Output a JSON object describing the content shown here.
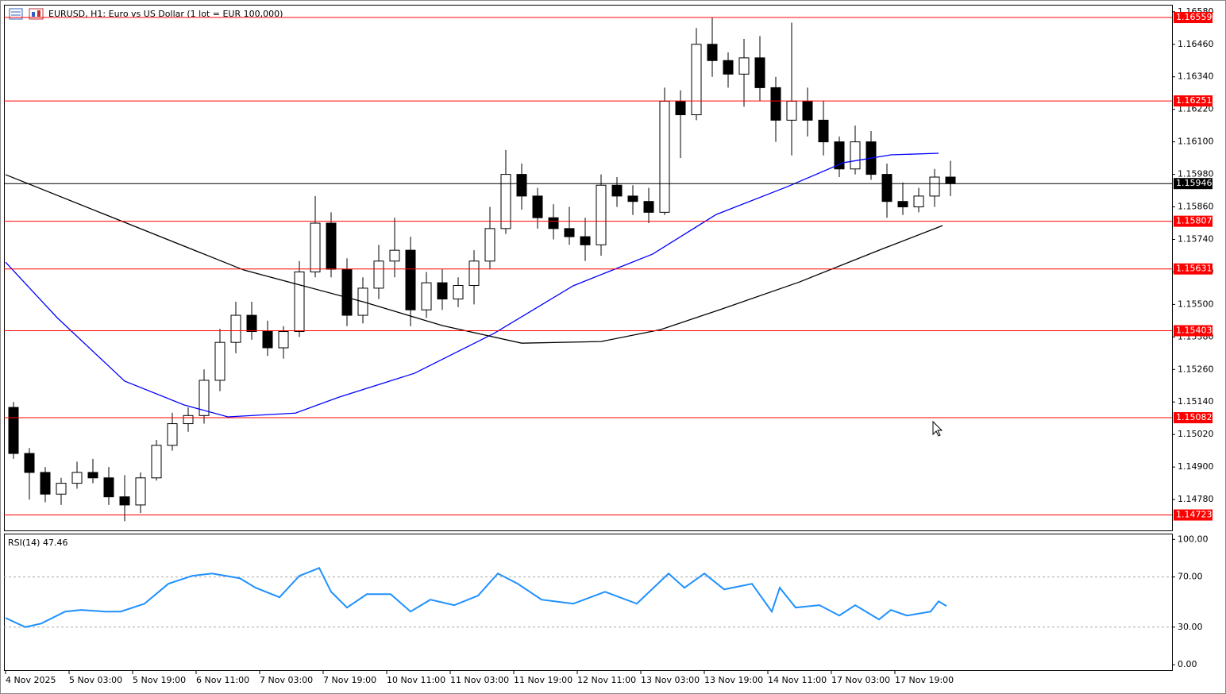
{
  "chart_data": [
    {
      "type": "candlestick",
      "title": "EURUSD, H1:  Euro vs US Dollar (1 lot = EUR 100,000)",
      "x": [
        2,
        6,
        10,
        14,
        18,
        22,
        26,
        30,
        34,
        38,
        42,
        46,
        50,
        54,
        58,
        62,
        66,
        70,
        74,
        78,
        82,
        86,
        90,
        94,
        98,
        102,
        106,
        110,
        114,
        118,
        122,
        126,
        130,
        134,
        138,
        142,
        146,
        150,
        154,
        158,
        162,
        166,
        170,
        174,
        178,
        182,
        186,
        190,
        194,
        198,
        202,
        206,
        210,
        214,
        218,
        222,
        226,
        230,
        234,
        238
      ],
      "open": [
        1.1512,
        1.1495,
        1.1488,
        1.148,
        1.1484,
        1.1488,
        1.1486,
        1.1479,
        1.1476,
        1.1486,
        1.1498,
        1.1506,
        1.1509,
        1.1522,
        1.1536,
        1.1546,
        1.154,
        1.1534,
        1.154,
        1.1562,
        1.158,
        1.1563,
        1.1546,
        1.1556,
        1.1566,
        1.157,
        1.1548,
        1.1558,
        1.1552,
        1.1557,
        1.1566,
        1.1578,
        1.1598,
        1.159,
        1.1582,
        1.1578,
        1.1575,
        1.1572,
        1.1594,
        1.159,
        1.1588,
        1.1584,
        1.1625,
        1.162,
        1.1646,
        1.164,
        1.1635,
        1.1641,
        1.163,
        1.1618,
        1.1625,
        1.1618,
        1.161,
        1.16,
        1.161,
        1.1598,
        1.1588,
        1.1586,
        1.159,
        1.1597
      ],
      "high": [
        1.1514,
        1.1497,
        1.149,
        1.1486,
        1.1492,
        1.1493,
        1.149,
        1.1487,
        1.1488,
        1.15,
        1.151,
        1.1512,
        1.1526,
        1.1541,
        1.1551,
        1.1551,
        1.1544,
        1.1542,
        1.1566,
        1.159,
        1.1584,
        1.1567,
        1.156,
        1.1572,
        1.1582,
        1.1575,
        1.1562,
        1.1563,
        1.156,
        1.157,
        1.1586,
        1.1607,
        1.1602,
        1.1593,
        1.1587,
        1.1586,
        1.1582,
        1.1598,
        1.1597,
        1.1594,
        1.1593,
        1.163,
        1.1629,
        1.1652,
        1.1656,
        1.1643,
        1.1648,
        1.1649,
        1.1634,
        1.1654,
        1.163,
        1.1625,
        1.1612,
        1.1616,
        1.1614,
        1.1602,
        1.1595,
        1.1593,
        1.16,
        1.1603
      ],
      "low": [
        1.1493,
        1.1478,
        1.1477,
        1.1476,
        1.1482,
        1.1484,
        1.1476,
        1.147,
        1.1473,
        1.1485,
        1.1496,
        1.1503,
        1.1506,
        1.1518,
        1.1532,
        1.1537,
        1.1531,
        1.153,
        1.1538,
        1.156,
        1.156,
        1.1542,
        1.1543,
        1.1552,
        1.156,
        1.1542,
        1.1545,
        1.1548,
        1.1549,
        1.155,
        1.1563,
        1.1576,
        1.1585,
        1.1578,
        1.1574,
        1.1572,
        1.1566,
        1.1568,
        1.1586,
        1.1583,
        1.158,
        1.1583,
        1.1604,
        1.1618,
        1.1634,
        1.163,
        1.1623,
        1.1625,
        1.161,
        1.1605,
        1.1612,
        1.1605,
        1.1597,
        1.1598,
        1.1596,
        1.1582,
        1.1583,
        1.1584,
        1.1586,
        1.159
      ],
      "close": [
        1.1495,
        1.1488,
        1.148,
        1.1484,
        1.1488,
        1.1486,
        1.1479,
        1.1476,
        1.1486,
        1.1498,
        1.1506,
        1.1509,
        1.1522,
        1.1536,
        1.1546,
        1.154,
        1.1534,
        1.154,
        1.1562,
        1.158,
        1.1563,
        1.1546,
        1.1556,
        1.1566,
        1.157,
        1.1548,
        1.1558,
        1.1552,
        1.1557,
        1.1566,
        1.1578,
        1.1598,
        1.159,
        1.1582,
        1.1578,
        1.1575,
        1.1572,
        1.1594,
        1.159,
        1.1588,
        1.1584,
        1.1625,
        1.162,
        1.1646,
        1.164,
        1.1635,
        1.1641,
        1.163,
        1.1618,
        1.1625,
        1.1618,
        1.161,
        1.16,
        1.161,
        1.1598,
        1.1588,
        1.1586,
        1.159,
        1.1597,
        1.15946
      ],
      "lines": [
        {
          "color": "#0000ff",
          "x": [
            0,
            13,
            30,
            45,
            56,
            73,
            84,
            103,
            123,
            143,
            163,
            179,
            197,
            211,
            223,
            235
          ],
          "values": [
            1.15656,
            1.15451,
            1.15217,
            1.15129,
            1.15085,
            1.15099,
            1.15158,
            1.15246,
            1.15393,
            1.15569,
            1.15686,
            1.15832,
            1.15935,
            1.16023,
            1.16052,
            1.16058
          ]
        },
        {
          "color": "#000000",
          "x": [
            0,
            30,
            60,
            90,
            110,
            130,
            150,
            165,
            180,
            200,
            220,
            236
          ],
          "values": [
            1.15979,
            1.15803,
            1.15627,
            1.1551,
            1.15422,
            1.15357,
            1.15363,
            1.15407,
            1.15481,
            1.15583,
            1.157,
            1.15791
          ]
        }
      ],
      "levels": [
        1.16559,
        1.16251,
        1.15807,
        1.15631,
        1.15403,
        1.15082,
        1.14723
      ],
      "level_color": "#ff0000",
      "current_price": 1.15946,
      "xlim": [
        -0.4,
        293.8
      ],
      "ylim": [
        1.14666,
        1.16603
      ],
      "yticks": [
        {
          "value": 1.1658,
          "label": "1.16580"
        },
        {
          "value": 1.1646,
          "label": "1.16460"
        },
        {
          "value": 1.1634,
          "label": "1.16340"
        },
        {
          "value": 1.1622,
          "label": "1.16220"
        },
        {
          "value": 1.161,
          "label": "1.16100"
        },
        {
          "value": 1.1598,
          "label": "1.15980"
        },
        {
          "value": 1.1586,
          "label": "1.15860"
        },
        {
          "value": 1.1574,
          "label": "1.15740"
        },
        {
          "value": 1.1562,
          "label": "1.15620"
        },
        {
          "value": 1.155,
          "label": "1.15500"
        },
        {
          "value": 1.1538,
          "label": "1.15380"
        },
        {
          "value": 1.1526,
          "label": "1.15260"
        },
        {
          "value": 1.1514,
          "label": "1.15140"
        },
        {
          "value": 1.1502,
          "label": "1.15020"
        },
        {
          "value": 1.149,
          "label": "1.14900"
        },
        {
          "value": 1.1478,
          "label": "1.14780"
        }
      ]
    },
    {
      "type": "line",
      "title": "RSI(14) 47.46",
      "color": "#1e90ff",
      "x": [
        0,
        5,
        9,
        15,
        19,
        25,
        29,
        35,
        41,
        47,
        52,
        59,
        63,
        69,
        74,
        79,
        82,
        86,
        91,
        97,
        102,
        107,
        113,
        119,
        124,
        129,
        135,
        143,
        151,
        159,
        167,
        171,
        176,
        181,
        188,
        193,
        195,
        199,
        205,
        210,
        214,
        220,
        223,
        227,
        233,
        235,
        237
      ],
      "values": [
        37.3,
        30,
        32.9,
        42.4,
        43.7,
        42.4,
        42.4,
        48.7,
        64.6,
        70.9,
        72.8,
        69,
        61.4,
        53.8,
        70.9,
        77.2,
        58.2,
        45.6,
        56.3,
        56.3,
        42.4,
        51.9,
        47.5,
        55.1,
        72.8,
        64.6,
        51.9,
        48.7,
        58.2,
        48.7,
        72.8,
        61.4,
        72.8,
        60.1,
        64.6,
        42.4,
        61.4,
        45.6,
        47.5,
        39.2,
        47.5,
        36.1,
        43.7,
        39.2,
        42.4,
        50.6,
        46.8
      ],
      "levels": [
        70,
        30
      ],
      "xlim": [
        -0.4,
        293.8
      ],
      "ylim": [
        -5,
        104
      ],
      "yticks": [
        {
          "value": 100,
          "label": "100.00"
        },
        {
          "value": 70,
          "label": "70.00"
        },
        {
          "value": 30,
          "label": "30.00"
        },
        {
          "value": 0,
          "label": "0.00"
        }
      ],
      "xticks": [
        {
          "value": 0,
          "label": "4 Nov 2025"
        },
        {
          "value": 16,
          "label": "5 Nov 03:00"
        },
        {
          "value": 32,
          "label": "5 Nov 19:00"
        },
        {
          "value": 48,
          "label": "6 Nov 11:00"
        },
        {
          "value": 64,
          "label": "7 Nov 03:00"
        },
        {
          "value": 80,
          "label": "7 Nov 19:00"
        },
        {
          "value": 96,
          "label": "10 Nov 11:00"
        },
        {
          "value": 112,
          "label": "11 Nov 03:00"
        },
        {
          "value": 128,
          "label": "11 Nov 19:00"
        },
        {
          "value": 144,
          "label": "12 Nov 11:00"
        },
        {
          "value": 160,
          "label": "13 Nov 03:00"
        },
        {
          "value": 176,
          "label": "13 Nov 19:00"
        },
        {
          "value": 192,
          "label": "14 Nov 11:00"
        },
        {
          "value": 208,
          "label": "17 Nov 03:00"
        },
        {
          "value": 224,
          "label": "17 Nov 19:00"
        }
      ]
    }
  ]
}
